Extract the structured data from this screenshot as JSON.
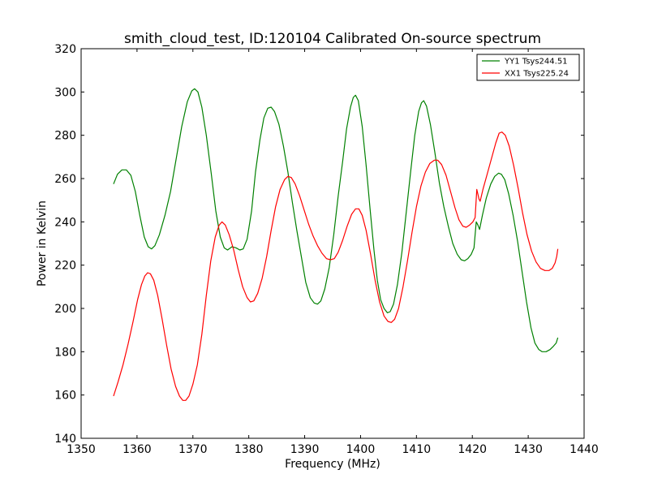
{
  "chart_data": {
    "type": "line",
    "title": "smith_cloud_test, ID:120104 Calibrated On-source spectrum",
    "xlabel": "Frequency (MHz)",
    "ylabel": "Power in Kelvin",
    "xlim": [
      1350,
      1440
    ],
    "ylim": [
      140,
      320
    ],
    "xticks": [
      1350,
      1360,
      1370,
      1380,
      1390,
      1400,
      1410,
      1420,
      1430,
      1440
    ],
    "yticks": [
      140,
      160,
      180,
      200,
      220,
      240,
      260,
      280,
      300,
      320
    ],
    "grid": false,
    "legend_position": "top-right",
    "series": [
      {
        "name": "YY1 Tsys244.51",
        "color": "#008000",
        "points": [
          [
            1355.8,
            257.5
          ],
          [
            1356.5,
            262
          ],
          [
            1357.3,
            264
          ],
          [
            1358.1,
            264
          ],
          [
            1358.9,
            261.5
          ],
          [
            1359.7,
            254
          ],
          [
            1360.5,
            243
          ],
          [
            1361.3,
            233
          ],
          [
            1362.0,
            228.5
          ],
          [
            1362.6,
            227.5
          ],
          [
            1363.2,
            229
          ],
          [
            1364.0,
            234
          ],
          [
            1365.0,
            243
          ],
          [
            1366.0,
            254
          ],
          [
            1367.0,
            269
          ],
          [
            1368.0,
            284
          ],
          [
            1369.0,
            295.5
          ],
          [
            1369.8,
            300.5
          ],
          [
            1370.3,
            301.5
          ],
          [
            1370.9,
            300
          ],
          [
            1371.6,
            293
          ],
          [
            1372.4,
            280
          ],
          [
            1373.3,
            262
          ],
          [
            1374.1,
            245
          ],
          [
            1374.9,
            233
          ],
          [
            1375.6,
            228
          ],
          [
            1376.2,
            227
          ],
          [
            1377.0,
            228.5
          ],
          [
            1377.7,
            228
          ],
          [
            1378.4,
            227
          ],
          [
            1379.0,
            227.5
          ],
          [
            1379.7,
            232
          ],
          [
            1380.5,
            245
          ],
          [
            1381.2,
            263
          ],
          [
            1382.0,
            278
          ],
          [
            1382.7,
            288
          ],
          [
            1383.4,
            292.5
          ],
          [
            1384.0,
            293
          ],
          [
            1384.6,
            291
          ],
          [
            1385.4,
            285
          ],
          [
            1386.2,
            275
          ],
          [
            1387.0,
            263
          ],
          [
            1387.8,
            249
          ],
          [
            1388.6,
            236
          ],
          [
            1389.4,
            224
          ],
          [
            1390.2,
            212
          ],
          [
            1391.0,
            205
          ],
          [
            1391.7,
            202.5
          ],
          [
            1392.3,
            202
          ],
          [
            1392.9,
            203.5
          ],
          [
            1393.6,
            209
          ],
          [
            1394.4,
            219
          ],
          [
            1395.2,
            234
          ],
          [
            1396.0,
            252
          ],
          [
            1396.8,
            268
          ],
          [
            1397.5,
            283
          ],
          [
            1398.2,
            293
          ],
          [
            1398.7,
            297.5
          ],
          [
            1399.1,
            298.5
          ],
          [
            1399.6,
            296
          ],
          [
            1400.3,
            284
          ],
          [
            1401.0,
            266
          ],
          [
            1401.7,
            246
          ],
          [
            1402.4,
            227
          ],
          [
            1403.0,
            213
          ],
          [
            1403.6,
            204
          ],
          [
            1404.2,
            200
          ],
          [
            1404.8,
            198
          ],
          [
            1405.3,
            198.5
          ],
          [
            1405.9,
            202
          ],
          [
            1406.6,
            211
          ],
          [
            1407.4,
            226
          ],
          [
            1408.2,
            245
          ],
          [
            1409.0,
            264
          ],
          [
            1409.7,
            280
          ],
          [
            1410.4,
            291
          ],
          [
            1410.9,
            295
          ],
          [
            1411.3,
            296
          ],
          [
            1411.8,
            293.5
          ],
          [
            1412.5,
            285
          ],
          [
            1413.3,
            272
          ],
          [
            1414.1,
            258
          ],
          [
            1414.9,
            247
          ],
          [
            1415.7,
            238
          ],
          [
            1416.5,
            230
          ],
          [
            1417.3,
            225
          ],
          [
            1418.0,
            222.5
          ],
          [
            1418.6,
            222
          ],
          [
            1419.2,
            223
          ],
          [
            1419.8,
            225
          ],
          [
            1420.3,
            228
          ],
          [
            1420.7,
            240
          ],
          [
            1421.0,
            238.5
          ],
          [
            1421.3,
            236.5
          ],
          [
            1421.8,
            243
          ],
          [
            1422.5,
            251
          ],
          [
            1423.3,
            257.5
          ],
          [
            1424.0,
            261
          ],
          [
            1424.7,
            262.5
          ],
          [
            1425.2,
            262
          ],
          [
            1425.8,
            259.5
          ],
          [
            1426.5,
            253
          ],
          [
            1427.3,
            243
          ],
          [
            1428.1,
            231
          ],
          [
            1428.9,
            217
          ],
          [
            1429.7,
            203
          ],
          [
            1430.5,
            191
          ],
          [
            1431.2,
            184
          ],
          [
            1431.9,
            181
          ],
          [
            1432.5,
            180
          ],
          [
            1433.2,
            180
          ],
          [
            1433.9,
            181
          ],
          [
            1434.5,
            182.5
          ],
          [
            1435.0,
            184
          ],
          [
            1435.3,
            186.5
          ]
        ]
      },
      {
        "name": "XX1 Tsys225.24",
        "color": "#ff0000",
        "points": [
          [
            1355.8,
            159.5
          ],
          [
            1356.6,
            166
          ],
          [
            1357.5,
            174
          ],
          [
            1358.4,
            183.5
          ],
          [
            1359.3,
            194
          ],
          [
            1360.1,
            204
          ],
          [
            1360.8,
            211
          ],
          [
            1361.4,
            215
          ],
          [
            1361.9,
            216.5
          ],
          [
            1362.4,
            216
          ],
          [
            1363.0,
            213
          ],
          [
            1363.7,
            206
          ],
          [
            1364.5,
            195
          ],
          [
            1365.3,
            183
          ],
          [
            1366.1,
            172
          ],
          [
            1366.9,
            164
          ],
          [
            1367.6,
            159.5
          ],
          [
            1368.2,
            157.5
          ],
          [
            1368.7,
            157.5
          ],
          [
            1369.3,
            159.5
          ],
          [
            1370.0,
            165
          ],
          [
            1370.8,
            174
          ],
          [
            1371.6,
            188
          ],
          [
            1372.4,
            206
          ],
          [
            1373.2,
            222
          ],
          [
            1374.0,
            233
          ],
          [
            1374.7,
            238.5
          ],
          [
            1375.2,
            240
          ],
          [
            1375.8,
            238.5
          ],
          [
            1376.5,
            234
          ],
          [
            1377.3,
            227
          ],
          [
            1378.1,
            218
          ],
          [
            1378.9,
            210
          ],
          [
            1379.7,
            205
          ],
          [
            1380.3,
            203
          ],
          [
            1380.9,
            203.5
          ],
          [
            1381.6,
            207
          ],
          [
            1382.4,
            214
          ],
          [
            1383.2,
            224
          ],
          [
            1384.0,
            236
          ],
          [
            1384.8,
            247
          ],
          [
            1385.6,
            255
          ],
          [
            1386.4,
            259.5
          ],
          [
            1387.0,
            261
          ],
          [
            1387.6,
            260.5
          ],
          [
            1388.3,
            257.5
          ],
          [
            1389.1,
            252
          ],
          [
            1389.9,
            245.5
          ],
          [
            1390.7,
            239
          ],
          [
            1391.5,
            233.5
          ],
          [
            1392.3,
            229
          ],
          [
            1393.1,
            225.5
          ],
          [
            1393.9,
            223
          ],
          [
            1394.6,
            222.5
          ],
          [
            1395.3,
            223
          ],
          [
            1396.0,
            226
          ],
          [
            1396.8,
            231.5
          ],
          [
            1397.6,
            238
          ],
          [
            1398.4,
            243.5
          ],
          [
            1399.1,
            246
          ],
          [
            1399.7,
            246
          ],
          [
            1400.3,
            243
          ],
          [
            1401.0,
            236
          ],
          [
            1401.8,
            225
          ],
          [
            1402.6,
            213
          ],
          [
            1403.4,
            203
          ],
          [
            1404.2,
            196.5
          ],
          [
            1404.9,
            194
          ],
          [
            1405.5,
            193.5
          ],
          [
            1406.1,
            195
          ],
          [
            1406.8,
            200
          ],
          [
            1407.6,
            210
          ],
          [
            1408.4,
            222
          ],
          [
            1409.2,
            235
          ],
          [
            1410.0,
            247
          ],
          [
            1410.8,
            256.5
          ],
          [
            1411.6,
            263
          ],
          [
            1412.4,
            267
          ],
          [
            1413.2,
            268.5
          ],
          [
            1413.8,
            268.5
          ],
          [
            1414.5,
            266.5
          ],
          [
            1415.3,
            261.5
          ],
          [
            1416.1,
            254
          ],
          [
            1416.9,
            246.5
          ],
          [
            1417.6,
            241
          ],
          [
            1418.3,
            238
          ],
          [
            1418.9,
            237.5
          ],
          [
            1419.5,
            238.5
          ],
          [
            1420.1,
            240
          ],
          [
            1420.5,
            242
          ],
          [
            1420.8,
            255
          ],
          [
            1421.2,
            250.5
          ],
          [
            1421.4,
            249.5
          ],
          [
            1421.9,
            255
          ],
          [
            1422.6,
            261.5
          ],
          [
            1423.4,
            269
          ],
          [
            1424.2,
            276.5
          ],
          [
            1424.8,
            281
          ],
          [
            1425.3,
            281.5
          ],
          [
            1425.9,
            280
          ],
          [
            1426.6,
            275
          ],
          [
            1427.4,
            266
          ],
          [
            1428.2,
            255.5
          ],
          [
            1429.0,
            244
          ],
          [
            1429.8,
            234
          ],
          [
            1430.6,
            226.5
          ],
          [
            1431.4,
            221.5
          ],
          [
            1432.2,
            218.5
          ],
          [
            1433.0,
            217.5
          ],
          [
            1433.7,
            217.5
          ],
          [
            1434.3,
            218.5
          ],
          [
            1434.8,
            221
          ],
          [
            1435.1,
            224
          ],
          [
            1435.3,
            227.5
          ]
        ]
      }
    ]
  }
}
